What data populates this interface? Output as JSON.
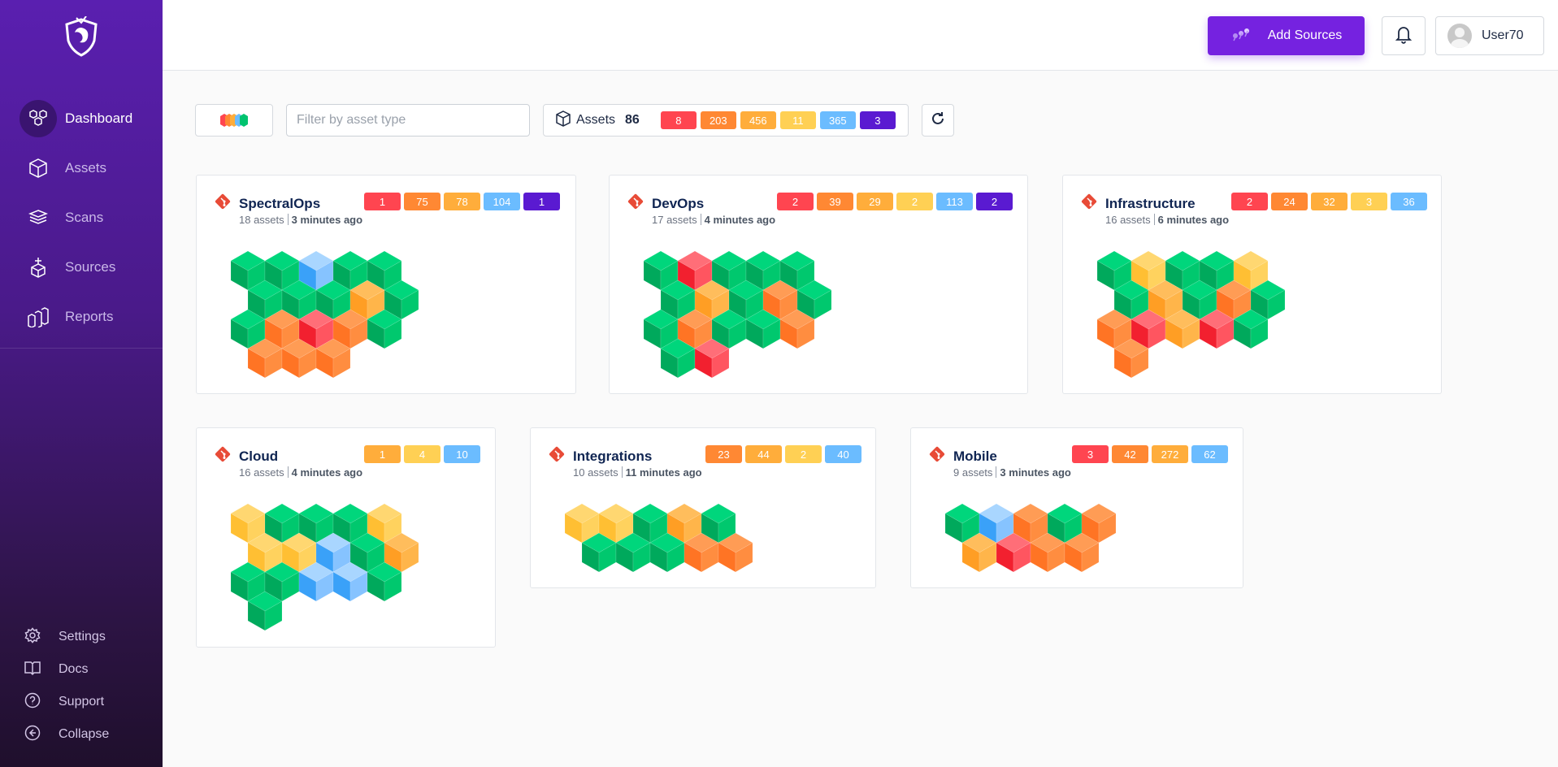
{
  "colors": {
    "critical": "#ff4550",
    "high": "#ff8833",
    "medium": "#ffad3b",
    "low": "#ffd054",
    "info": "#6bbcff",
    "unknown": "#5a1ad1",
    "accent": "#7522e0"
  },
  "sidebar": {
    "logo": "shield-dragon-logo",
    "items": [
      {
        "label": "Dashboard",
        "icon": "cubes-icon",
        "active": true
      },
      {
        "label": "Assets",
        "icon": "cube-icon"
      },
      {
        "label": "Scans",
        "icon": "layers-icon"
      },
      {
        "label": "Sources",
        "icon": "box-plus-icon"
      },
      {
        "label": "Reports",
        "icon": "bar-cubes-icon"
      }
    ],
    "bottom": [
      {
        "label": "Settings",
        "icon": "gear-icon"
      },
      {
        "label": "Docs",
        "icon": "book-icon"
      },
      {
        "label": "Support",
        "icon": "help-icon"
      },
      {
        "label": "Collapse",
        "icon": "arrow-left-circle-icon"
      }
    ]
  },
  "header": {
    "add_sources": "Add Sources",
    "user": "User70"
  },
  "toolbar": {
    "filter_placeholder": "Filter by asset type",
    "assets_label": "Assets",
    "assets_count": "86",
    "badges": [
      {
        "v": "8",
        "s": "critical"
      },
      {
        "v": "203",
        "s": "high"
      },
      {
        "v": "456",
        "s": "medium"
      },
      {
        "v": "11",
        "s": "low"
      },
      {
        "v": "365",
        "s": "info"
      },
      {
        "v": "3",
        "s": "unknown"
      }
    ]
  },
  "cards": [
    {
      "title": "SpectralOps",
      "assets": "18 assets",
      "time": "3 minutes ago",
      "badges": [
        {
          "v": "1",
          "s": "critical"
        },
        {
          "v": "75",
          "s": "high"
        },
        {
          "v": "78",
          "s": "medium"
        },
        {
          "v": "104",
          "s": "info"
        },
        {
          "v": "1",
          "s": "unknown"
        }
      ],
      "cubes": [
        "GGBGG",
        "GGGMG",
        "GHCHG",
        "HHH"
      ]
    },
    {
      "title": "DevOps",
      "assets": "17 assets",
      "time": "4 minutes ago",
      "badges": [
        {
          "v": "2",
          "s": "critical"
        },
        {
          "v": "39",
          "s": "high"
        },
        {
          "v": "29",
          "s": "medium"
        },
        {
          "v": "2",
          "s": "low"
        },
        {
          "v": "113",
          "s": "info"
        },
        {
          "v": "2",
          "s": "unknown"
        }
      ],
      "cubes": [
        "GCGGG",
        "GMGHG",
        "GHGGH",
        "GC"
      ]
    },
    {
      "title": "Infrastructure",
      "assets": "16 assets",
      "time": "6 minutes ago",
      "badges": [
        {
          "v": "2",
          "s": "critical"
        },
        {
          "v": "24",
          "s": "high"
        },
        {
          "v": "32",
          "s": "medium"
        },
        {
          "v": "3",
          "s": "low"
        },
        {
          "v": "36",
          "s": "info"
        }
      ],
      "cubes": [
        "GLGGL",
        "GMGHG",
        "HCMCG",
        "H"
      ]
    },
    {
      "title": "Cloud",
      "assets": "16 assets",
      "time": "4 minutes ago",
      "badges": [
        {
          "v": "1",
          "s": "medium"
        },
        {
          "v": "4",
          "s": "low"
        },
        {
          "v": "10",
          "s": "info"
        }
      ],
      "cubes": [
        "LGGGL",
        "LLBGM",
        "GGBBG",
        "G"
      ]
    },
    {
      "title": "Integrations",
      "assets": "10 assets",
      "time": "11 minutes ago",
      "badges": [
        {
          "v": "23",
          "s": "high"
        },
        {
          "v": "44",
          "s": "medium"
        },
        {
          "v": "2",
          "s": "low"
        },
        {
          "v": "40",
          "s": "info"
        }
      ],
      "cubes": [
        "LLGMG",
        "GGGHH"
      ]
    },
    {
      "title": "Mobile",
      "assets": "9 assets",
      "time": "3 minutes ago",
      "badges": [
        {
          "v": "3",
          "s": "critical"
        },
        {
          "v": "42",
          "s": "high"
        },
        {
          "v": "272",
          "s": "medium"
        },
        {
          "v": "62",
          "s": "info"
        }
      ],
      "cubes": [
        "GBHGH",
        "MCHH"
      ]
    }
  ]
}
